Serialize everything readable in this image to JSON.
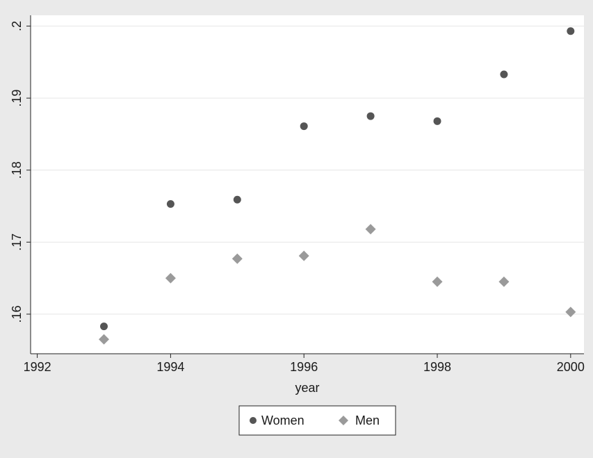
{
  "chart_data": {
    "type": "scatter",
    "title": "",
    "xlabel": "year",
    "ylabel": "",
    "xlim": [
      1991.9,
      2000.2
    ],
    "ylim": [
      0.1545,
      0.2015
    ],
    "xticks": [
      1992,
      1994,
      1996,
      1998,
      2000
    ],
    "xtick_labels": [
      "1992",
      "1994",
      "1996",
      "1998",
      "2000"
    ],
    "yticks": [
      0.16,
      0.17,
      0.18,
      0.19,
      0.2
    ],
    "ytick_labels": [
      ".16",
      ".17",
      ".18",
      ".19",
      ".2"
    ],
    "grid": "horizontal",
    "legend_position": "bottom",
    "series": [
      {
        "name": "Women",
        "marker": "circle",
        "color": "#555555",
        "x": [
          1993,
          1994,
          1995,
          1996,
          1997,
          1998,
          1999,
          2000
        ],
        "y": [
          0.1583,
          0.1753,
          0.1759,
          0.1861,
          0.1875,
          0.1868,
          0.1933,
          0.1993
        ]
      },
      {
        "name": "Men",
        "marker": "diamond",
        "color": "#9a9a9a",
        "x": [
          1993,
          1994,
          1995,
          1996,
          1997,
          1998,
          1999,
          2000
        ],
        "y": [
          0.1565,
          0.165,
          0.1677,
          0.1681,
          0.1718,
          0.1645,
          0.1645,
          0.1603
        ]
      }
    ]
  },
  "colors": {
    "background": "#eaeaea",
    "plot_background": "#ffffff",
    "grid": "#e6e6e6",
    "axis": "#222222"
  }
}
